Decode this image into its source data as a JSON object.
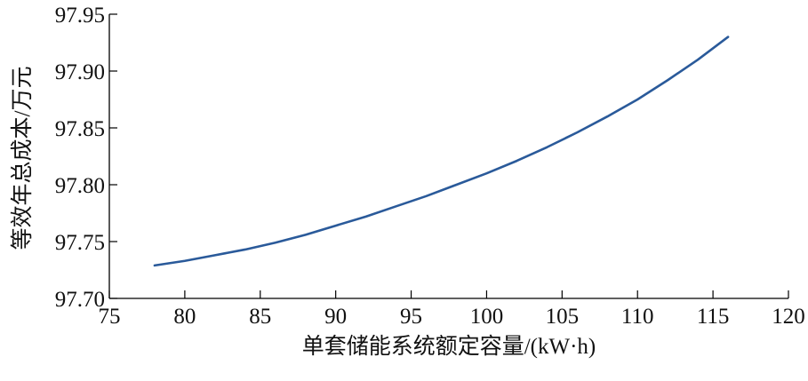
{
  "chart_data": {
    "type": "line",
    "title": "",
    "xlabel": "单套储能系统额定容量/(kW·h)",
    "ylabel": "等效年总成本/万元",
    "xlim": [
      75,
      120
    ],
    "ylim": [
      97.7,
      97.95
    ],
    "xticks": [
      "75",
      "80",
      "85",
      "90",
      "95",
      "100",
      "105",
      "110",
      "115",
      "120"
    ],
    "yticks": [
      "97.70",
      "97.75",
      "97.80",
      "97.85",
      "97.90",
      "97.95"
    ],
    "grid": false,
    "series": [
      {
        "color": "#2a5a9a",
        "x": [
          78,
          80,
          82,
          84,
          86,
          88,
          90,
          92,
          94,
          96,
          98,
          100,
          102,
          104,
          106,
          108,
          110,
          112,
          114,
          116
        ],
        "y": [
          97.729,
          97.733,
          97.738,
          97.743,
          97.749,
          97.756,
          97.764,
          97.772,
          97.781,
          97.79,
          97.8,
          97.81,
          97.821,
          97.833,
          97.846,
          97.86,
          97.875,
          97.892,
          97.91,
          97.93
        ]
      }
    ]
  }
}
